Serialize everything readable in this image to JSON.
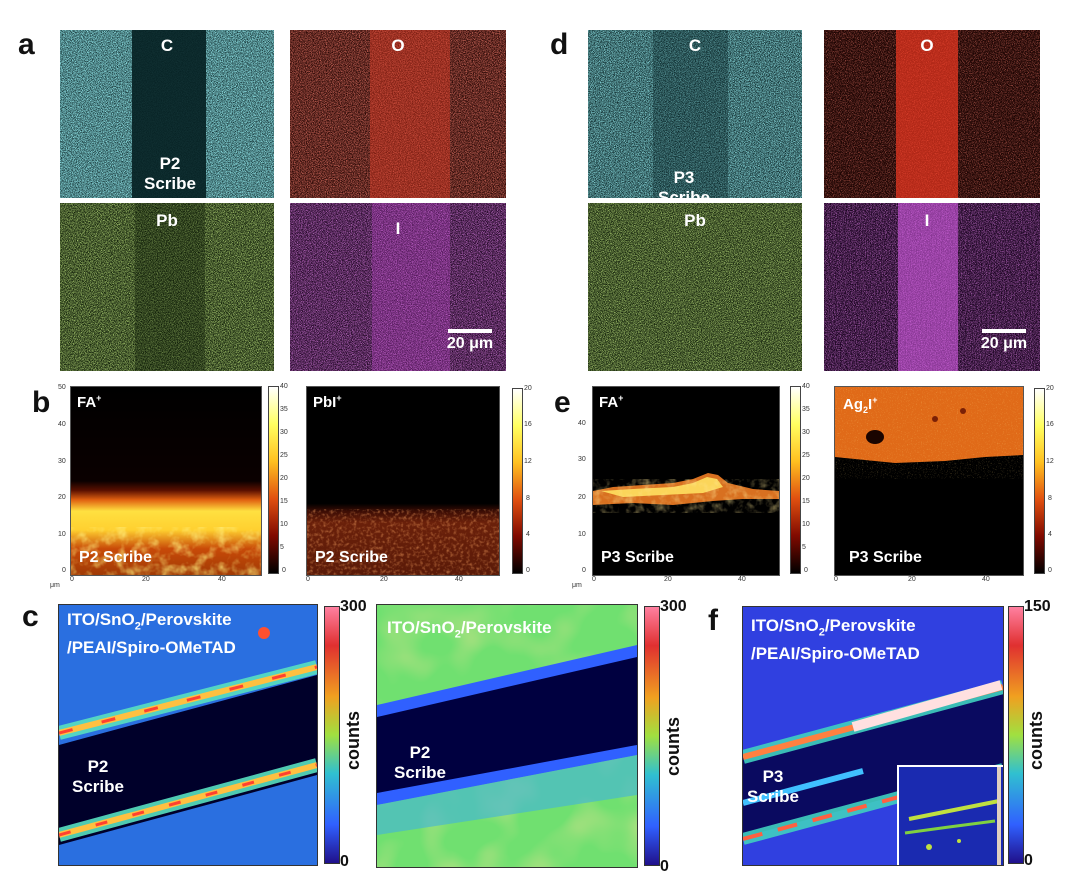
{
  "panels": {
    "a": {
      "letter": "a",
      "maps": [
        "C",
        "O",
        "Pb",
        "I"
      ],
      "scribe": "P2\nScribe",
      "scale": "20 μm"
    },
    "d": {
      "letter": "d",
      "maps": [
        "C",
        "O",
        "Pb",
        "I"
      ],
      "scribe": "P3\nScribe",
      "scale": "20 μm"
    },
    "b": {
      "letter": "b",
      "left_ion": "FA",
      "left_ion_sup": "+",
      "right_ion": "PbI",
      "right_ion_sup": "+",
      "left_scribe": "P2 Scribe",
      "right_scribe": "P2 Scribe",
      "left_cbar_ticks": [
        "40",
        "35",
        "30",
        "25",
        "20",
        "15",
        "10",
        "5",
        "0"
      ],
      "right_cbar_ticks": [
        "20",
        "16",
        "12",
        "8",
        "4",
        "0"
      ],
      "y_ticks": [
        "50",
        "40",
        "30",
        "20",
        "10",
        "0"
      ],
      "x_ticks": [
        "0",
        "20",
        "40"
      ],
      "unit": "μm"
    },
    "e": {
      "letter": "e",
      "left_ion": "FA",
      "left_ion_sup": "+",
      "right_ion_a": "Ag",
      "right_ion_sub": "2",
      "right_ion_b": "I",
      "right_ion_sup": "+",
      "left_scribe": "P3 Scribe",
      "right_scribe": "P3 Scribe",
      "left_cbar_ticks": [
        "40",
        "35",
        "30",
        "25",
        "20",
        "15",
        "10",
        "5",
        "0"
      ],
      "right_cbar_ticks": [
        "20",
        "16",
        "12",
        "8",
        "4",
        "0"
      ],
      "y_ticks": [
        "40",
        "30",
        "20",
        "10",
        "0"
      ],
      "x_ticks": [
        "0",
        "20",
        "40"
      ],
      "unit": "μm"
    },
    "c": {
      "letter": "c",
      "left_line1a": "ITO/SnO",
      "left_line1sub": "2",
      "left_line1b": "/Perovskite",
      "left_line2": "/PEAI/Spiro-OMeTAD",
      "left_scribe": "P2\nScribe",
      "left_max": "300",
      "left_min": "0",
      "counts": "counts",
      "right_line1a": "ITO/SnO",
      "right_line1sub": "2",
      "right_line1b": "/Perovskite",
      "right_scribe": "P2\nScribe",
      "right_max": "300",
      "right_min": "0"
    },
    "f": {
      "letter": "f",
      "line1a": "ITO/SnO",
      "line1sub": "2",
      "line1b": "/Perovskite",
      "line2": "/PEAI/Spiro-OMeTAD",
      "scribe": "P3\nScribe",
      "max": "150",
      "min": "0",
      "counts": "counts"
    }
  },
  "colors": {
    "carbon": "#4fd0d6",
    "oxygen": "#d8382a",
    "lead": "#8fd23a",
    "iodine": "#c23ad0"
  }
}
